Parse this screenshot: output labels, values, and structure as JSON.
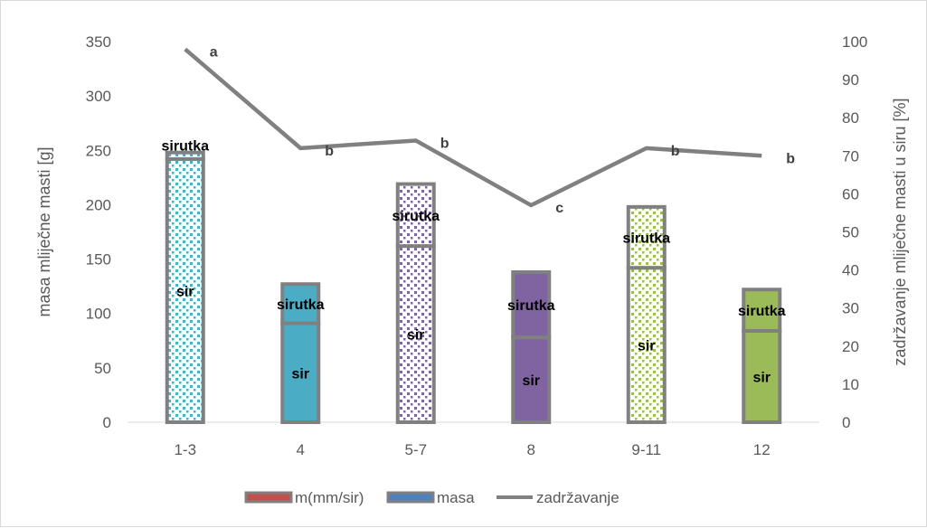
{
  "chart_data": {
    "type": "bar",
    "stacked": true,
    "categories": [
      "1-3",
      "4",
      "5-7",
      "8",
      "9-11",
      "12"
    ],
    "ylabel": "masa mliječne masti [g]",
    "y2label": "zadržavanje mliječne masti u siru [%]",
    "ylim": [
      0,
      350
    ],
    "y2lim": [
      0,
      100
    ],
    "yticks": [
      0,
      50,
      100,
      150,
      200,
      250,
      300,
      350
    ],
    "y2ticks": [
      0,
      10,
      20,
      30,
      40,
      50,
      60,
      70,
      80,
      90,
      100
    ],
    "grid": false,
    "legend_position": "bottom",
    "series": [
      {
        "name": "sir",
        "values": [
          242,
          91,
          162,
          78,
          142,
          84
        ]
      },
      {
        "name": "sirutka",
        "values": [
          6,
          36,
          57,
          60,
          56,
          38
        ]
      }
    ],
    "bar_colors": [
      "#4bacc6",
      "#4bacc6",
      "#8064a2",
      "#8064a2",
      "#9bbb59",
      "#9bbb59"
    ],
    "bar_patterned": [
      true,
      false,
      true,
      false,
      true,
      false
    ],
    "line": {
      "name": "zadržavanje",
      "axis": "secondary",
      "values": [
        98,
        72,
        74,
        57,
        72,
        70
      ],
      "labels": [
        "a",
        "b",
        "b",
        "c",
        "b",
        "b"
      ],
      "color": "#808080"
    },
    "legend": [
      {
        "label": "m(mm/sir)",
        "color": "#c0504d",
        "kind": "bar"
      },
      {
        "label": "masa",
        "color": "#4f81bd",
        "kind": "bar"
      },
      {
        "label": "zadržavanje",
        "color": "#808080",
        "kind": "line"
      }
    ]
  }
}
